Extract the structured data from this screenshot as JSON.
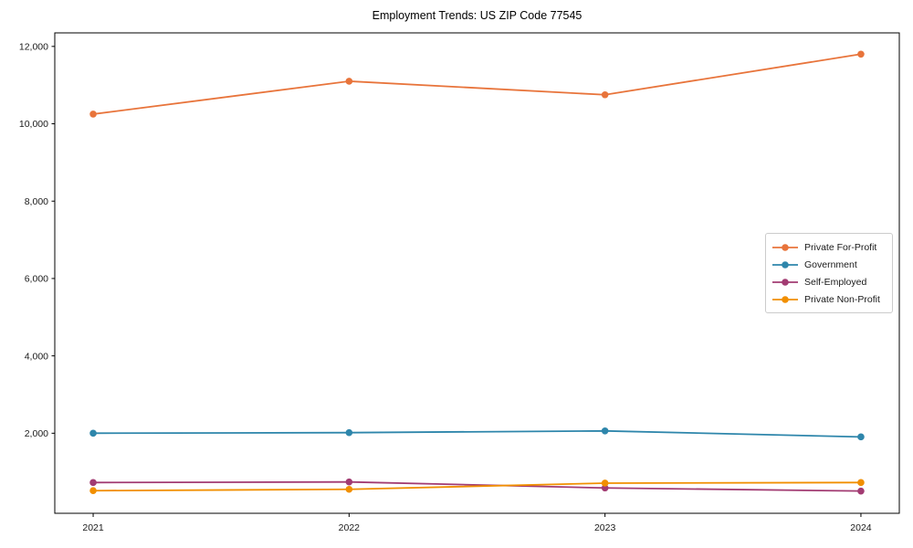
{
  "chart_data": {
    "type": "line",
    "title": "Employment Trends: US ZIP Code 77545",
    "xlabel": "",
    "ylabel": "",
    "x": [
      2021,
      2022,
      2023,
      2024
    ],
    "x_tick_labels": [
      "2021",
      "2022",
      "2023",
      "2024"
    ],
    "series": [
      {
        "name": "Private For-Profit",
        "color": "#E8743B",
        "values": [
          10250,
          11100,
          10750,
          11800
        ]
      },
      {
        "name": "Government",
        "color": "#2E86AB",
        "values": [
          2000,
          2015,
          2060,
          1905
        ]
      },
      {
        "name": "Self-Employed",
        "color": "#A23B72",
        "values": [
          725,
          740,
          585,
          505
        ]
      },
      {
        "name": "Private Non-Profit",
        "color": "#F18F01",
        "values": [
          515,
          550,
          710,
          725
        ]
      }
    ],
    "xlim": [
      2020.85,
      2024.15
    ],
    "ylim": [
      -70,
      12350
    ],
    "yticks": [
      2000,
      4000,
      6000,
      8000,
      10000,
      12000
    ],
    "ytick_labels": [
      "2,000",
      "4,000",
      "6,000",
      "8,000",
      "10,000",
      "12,000"
    ],
    "grid": false,
    "legend_position": "center-right",
    "axis_color": "#000000",
    "text_color": "#1a1a1a",
    "background_color": "#ffffff"
  }
}
